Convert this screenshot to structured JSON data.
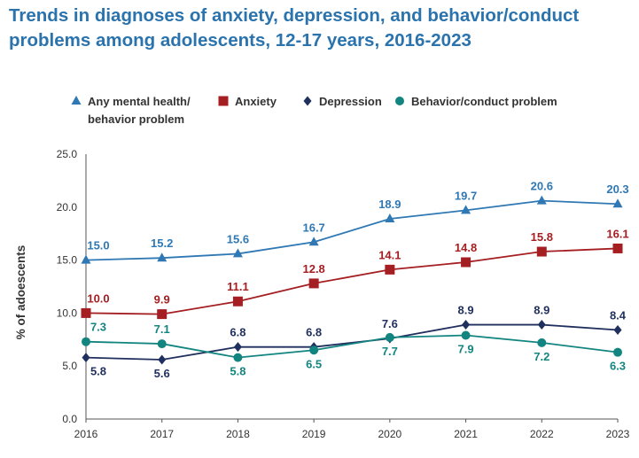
{
  "chart_data": {
    "type": "line",
    "title": "Trends in diagnoses of anxiety, depression, and behavior/conduct problems among adolescents, 12-17 years, 2016-2023",
    "xlabel": "",
    "ylabel": "% of adoescents",
    "x": [
      2016,
      2017,
      2018,
      2019,
      2020,
      2021,
      2022,
      2023
    ],
    "ylim": [
      0,
      25
    ],
    "yticks": [
      "0.0",
      "5.0",
      "10.0",
      "15.0",
      "20.0",
      "25.0"
    ],
    "grid": false,
    "legend_position": "top",
    "series": [
      {
        "name": "Any mental health/ behavior problem",
        "legend_lines": [
          "Any mental health/",
          "behavior problem"
        ],
        "color": "#2f78b4",
        "marker": "triangle",
        "values": [
          15.0,
          15.2,
          15.6,
          16.7,
          18.9,
          19.7,
          20.6,
          20.3
        ]
      },
      {
        "name": "Anxiety",
        "legend_lines": [
          "Anxiety"
        ],
        "color": "#a51e22",
        "marker": "square",
        "values": [
          10.0,
          9.9,
          11.1,
          12.8,
          14.1,
          14.8,
          15.8,
          16.1
        ]
      },
      {
        "name": "Depression",
        "legend_lines": [
          "Depression"
        ],
        "color": "#1f2f5e",
        "marker": "diamond",
        "values": [
          5.8,
          5.6,
          6.8,
          6.8,
          7.6,
          8.9,
          8.9,
          8.4
        ]
      },
      {
        "name": "Behavior/conduct problem",
        "legend_lines": [
          "Behavior/conduct problem"
        ],
        "color": "#138580",
        "marker": "circle",
        "values": [
          7.3,
          7.1,
          5.8,
          6.5,
          7.7,
          7.9,
          7.2,
          6.3
        ]
      }
    ]
  }
}
